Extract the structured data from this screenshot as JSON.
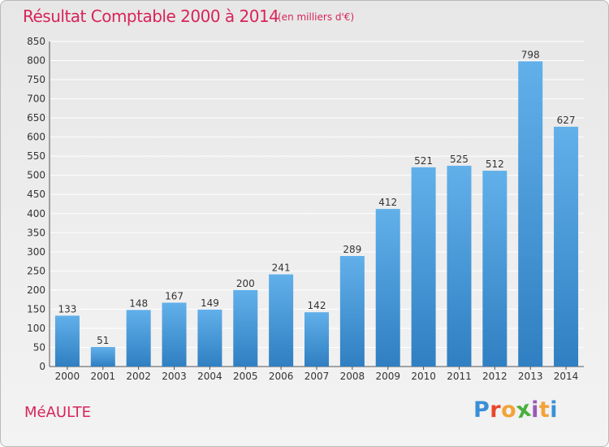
{
  "header": {
    "title": "Résultat Comptable 2000 à 2014",
    "subtitle": "(en milliers d'€)"
  },
  "footer": {
    "commune": "MéAULTE",
    "logo_letters": [
      "P",
      "r",
      "o",
      "x",
      "i",
      "t",
      "i"
    ],
    "logo_colors": [
      "#3a8fd6",
      "#e9462c",
      "#f2a33a",
      "#4aaf3d",
      "#9b59b6",
      "#f2a33a",
      "#3a8fd6"
    ]
  },
  "colors": {
    "accent": "#d8245a",
    "bar_top": "#62b0ea",
    "bar_bottom": "#2f7fc2",
    "grid": "#ffffff",
    "axis": "#555555"
  },
  "chart_data": {
    "type": "bar",
    "title": "Résultat Comptable 2000 à 2014",
    "xlabel": "",
    "ylabel": "",
    "ylim": [
      0,
      850
    ],
    "yticks": [
      0,
      50,
      100,
      150,
      200,
      250,
      300,
      350,
      400,
      450,
      500,
      550,
      600,
      650,
      700,
      750,
      800,
      850
    ],
    "grid": true,
    "categories": [
      "2000",
      "2001",
      "2002",
      "2003",
      "2004",
      "2005",
      "2006",
      "2007",
      "2008",
      "2009",
      "2010",
      "2011",
      "2012",
      "2013",
      "2014"
    ],
    "values": [
      133,
      51,
      148,
      167,
      149,
      200,
      241,
      142,
      289,
      412,
      521,
      525,
      512,
      798,
      627
    ]
  }
}
